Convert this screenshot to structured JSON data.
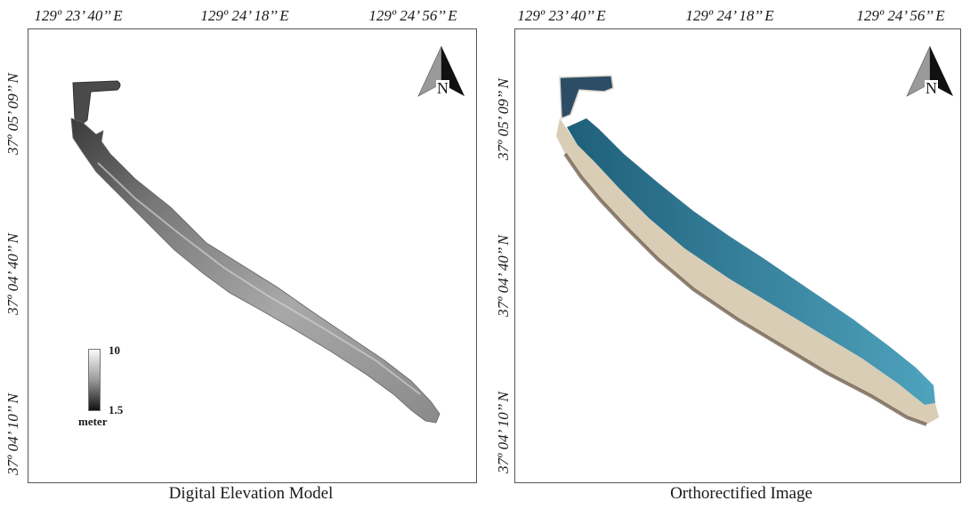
{
  "panels": [
    {
      "caption": "Digital Elevation Model",
      "longitude_labels": [
        "129º 23’ 40’’ E",
        "129º 24’ 18’’ E",
        "129º 24’ 56’’ E"
      ],
      "latitude_labels": [
        "37º 05’ 09’’ N",
        "37º 04’ 40’’ N",
        "37º 04’ 10’’ N"
      ],
      "north_arrow_label": "N",
      "legend": {
        "max_label": "10",
        "min_label": "1.5",
        "unit": "meter"
      }
    },
    {
      "caption": "Orthorectified Image",
      "longitude_labels": [
        "129º 23’ 40’’ E",
        "129º 24’ 18’’ E",
        "129º 24’ 56’’ E"
      ],
      "latitude_labels": [
        "37º 05’ 09’’ N",
        "37º 04’ 40’’ N",
        "37º 04’ 10’’ N"
      ],
      "north_arrow_label": "N"
    }
  ],
  "colors": {
    "dem_dark": "#2a2a2a",
    "dem_mid": "#8c8c8c",
    "dem_light": "#d0d0d0",
    "sand": "#d9cdb6",
    "sea_shallow": "#4fa3bd",
    "sea_deep": "#1f5f7a",
    "rock": "#6b5a4a"
  }
}
